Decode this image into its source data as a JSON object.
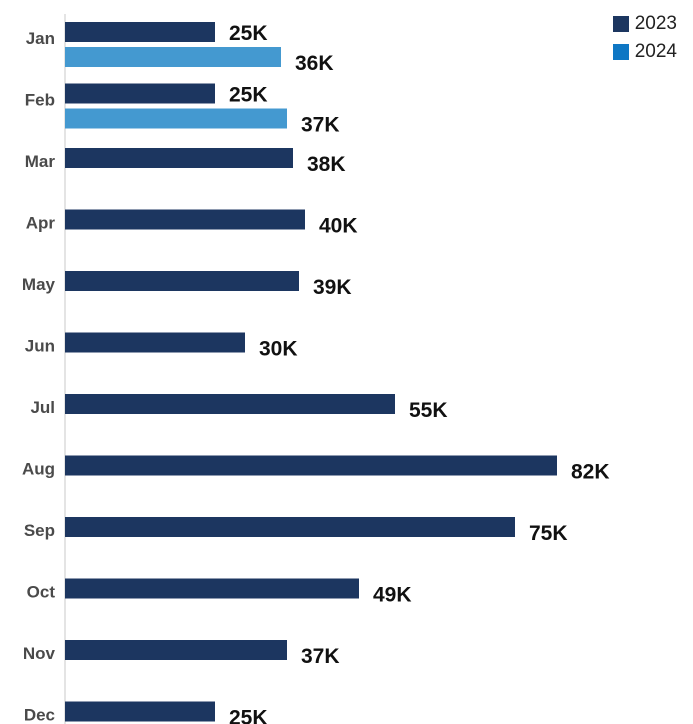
{
  "chart_data": {
    "type": "bar",
    "orientation": "horizontal",
    "categories": [
      "Jan",
      "Feb",
      "Mar",
      "Apr",
      "May",
      "Jun",
      "Jul",
      "Aug",
      "Sep",
      "Oct",
      "Nov",
      "Dec"
    ],
    "series": [
      {
        "name": "2023",
        "color": "#1c3660",
        "values": [
          25,
          25,
          38,
          40,
          39,
          30,
          55,
          82,
          75,
          49,
          37,
          25
        ],
        "labels": [
          "25K",
          "25K",
          "38K",
          "40K",
          "39K",
          "30K",
          "55K",
          "82K",
          "75K",
          "49K",
          "37K",
          "25K"
        ]
      },
      {
        "name": "2024",
        "color": "#4499d0",
        "values": [
          36,
          37,
          null,
          null,
          null,
          null,
          null,
          null,
          null,
          null,
          null,
          null
        ],
        "labels": [
          "36K",
          "37K",
          "",
          "",
          "",
          "",
          "",
          "",
          "",
          "",
          "",
          ""
        ]
      }
    ],
    "legend_position": "top-right",
    "grid": false
  },
  "legend": {
    "items": [
      {
        "label": "2023",
        "color": "#1c3660"
      },
      {
        "label": "2024",
        "color": "#0e77c4"
      }
    ]
  }
}
